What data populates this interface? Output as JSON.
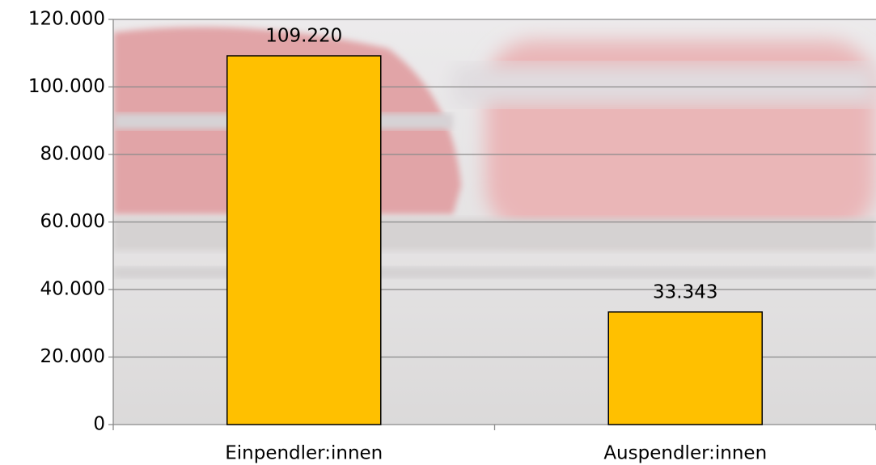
{
  "chart_data": {
    "type": "bar",
    "categories": [
      "Einpendler:innen",
      "Auspendler:innen"
    ],
    "values": [
      109220,
      33343
    ],
    "value_labels": [
      "109.220",
      "33.343"
    ],
    "color": "#ffc000",
    "ylim": [
      0,
      120000
    ],
    "yticks": [
      0,
      {
        "value": 20000,
        "label": "20.000"
      },
      {
        "value": 40000,
        "label": "40.000"
      },
      {
        "value": 60000,
        "label": "60.000"
      },
      {
        "value": 80000,
        "label": "80.000"
      },
      {
        "value": 100000,
        "label": "100.000"
      },
      {
        "value": 120000,
        "label": "120.000"
      }
    ],
    "grid": true
  }
}
